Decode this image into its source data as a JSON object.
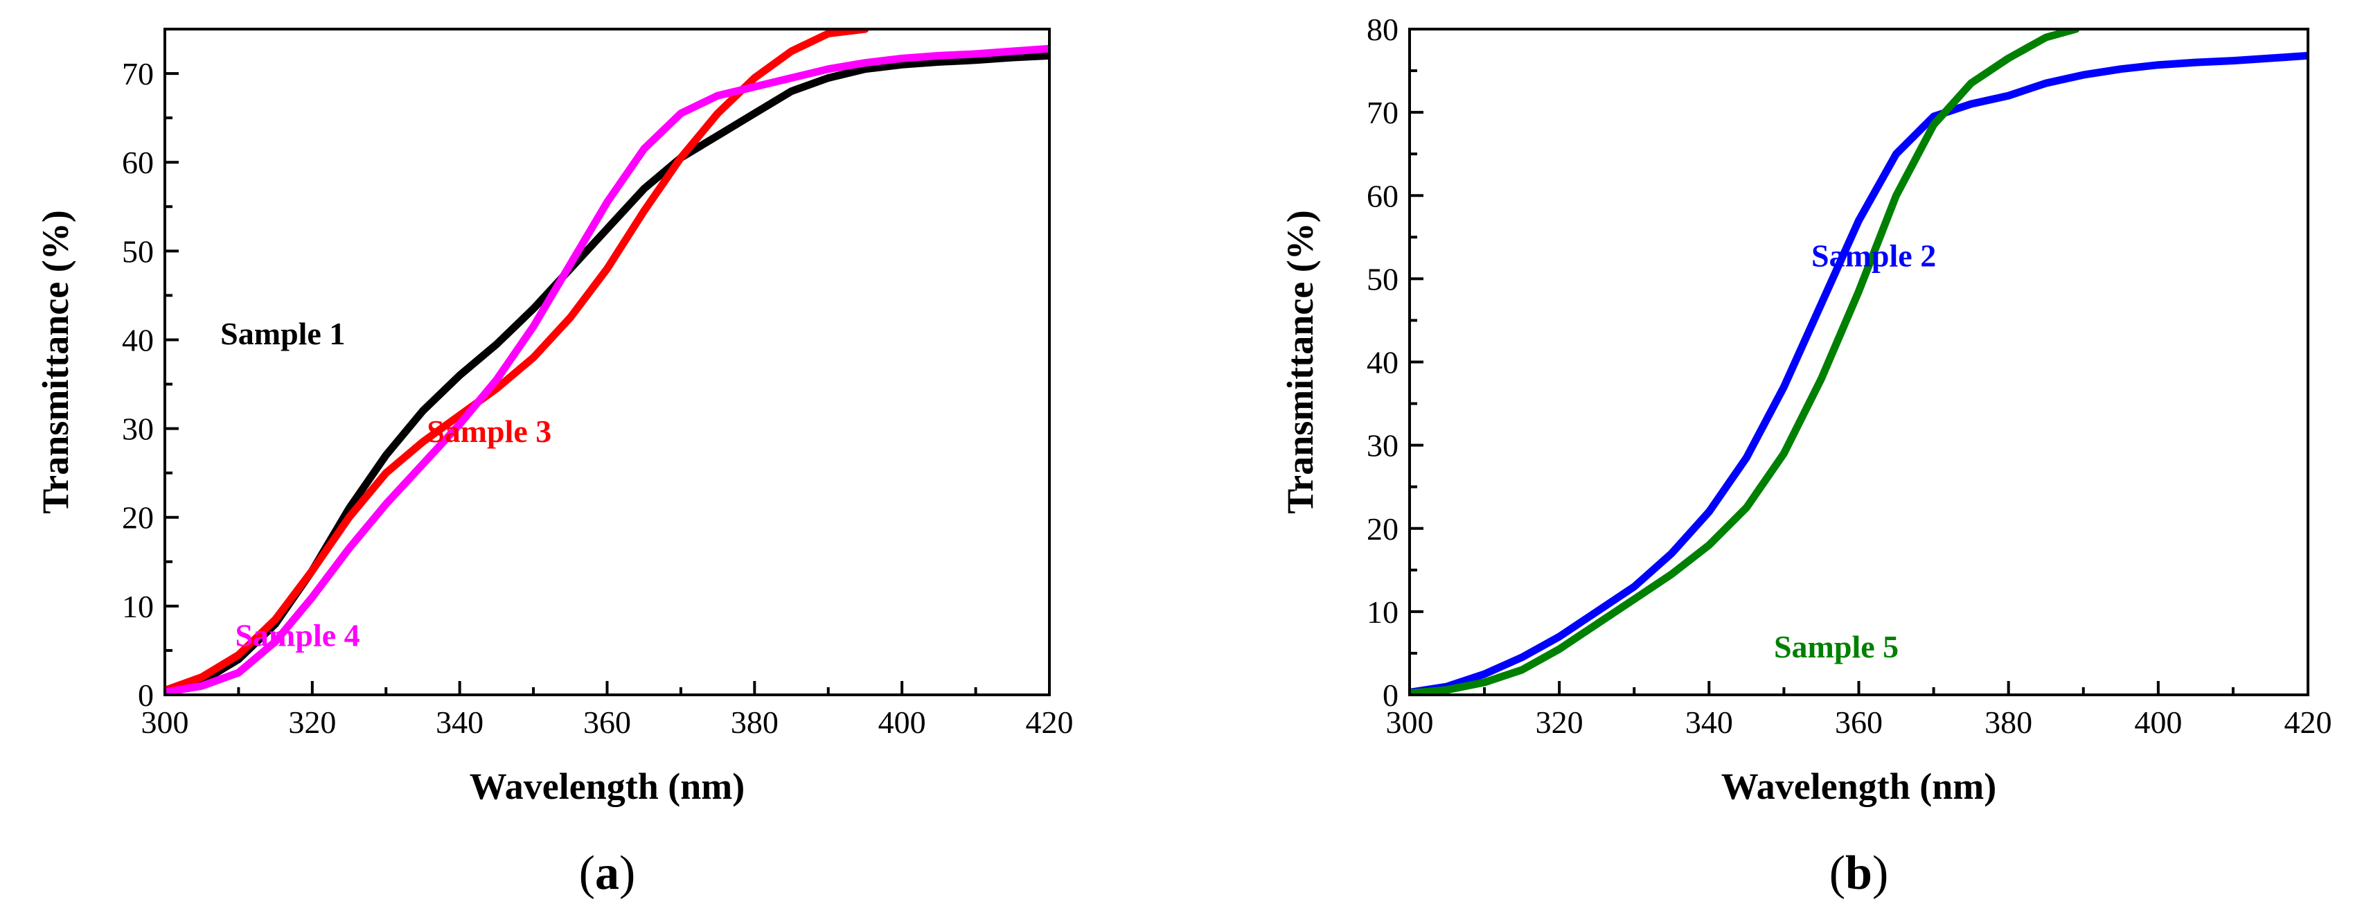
{
  "chart_data": [
    {
      "panel": "(a)",
      "panel_label": {
        "open": "(",
        "letter": "a",
        "close": ")"
      },
      "type": "line",
      "xlabel": "Wavelength (nm)",
      "ylabel": "Transmittance (%)",
      "xlim": [
        300,
        420
      ],
      "ylim": [
        0,
        75
      ],
      "xticks": [
        300,
        320,
        340,
        360,
        380,
        400,
        420
      ],
      "yticks": [
        0,
        10,
        20,
        30,
        40,
        50,
        60,
        70
      ],
      "series": [
        {
          "name": "Sample 1",
          "color": "#000000",
          "label_at": [
            316,
            39.5
          ],
          "x": [
            300,
            305,
            310,
            315,
            320,
            325,
            330,
            335,
            340,
            345,
            350,
            355,
            360,
            365,
            370,
            375,
            380,
            385,
            390,
            395,
            400,
            405,
            410,
            415,
            420
          ],
          "y": [
            0.5,
            1.5,
            4,
            8,
            14,
            21,
            27,
            32,
            36,
            39.5,
            43.5,
            48,
            52.5,
            57,
            60.5,
            63,
            65.5,
            68,
            69.5,
            70.5,
            71,
            71.3,
            71.5,
            71.8,
            72
          ]
        },
        {
          "name": "Sample 3",
          "color": "#ff0000",
          "label_at": [
            344,
            28.5
          ],
          "x": [
            300,
            305,
            310,
            315,
            320,
            325,
            330,
            335,
            340,
            345,
            350,
            355,
            360,
            365,
            370,
            375,
            380,
            385,
            390,
            395
          ],
          "y": [
            0.5,
            2,
            4.5,
            8.5,
            14,
            20,
            25,
            28.5,
            31.5,
            34.5,
            38,
            42.5,
            48,
            54.5,
            60.5,
            65.5,
            69.5,
            72.5,
            74.5,
            75
          ]
        },
        {
          "name": "Sample 4",
          "color": "#ff00ff",
          "label_at": [
            318,
            5.5
          ],
          "x": [
            300,
            305,
            310,
            315,
            320,
            325,
            330,
            335,
            340,
            345,
            350,
            355,
            360,
            365,
            370,
            375,
            380,
            385,
            390,
            395,
            400,
            405,
            410,
            415,
            420
          ],
          "y": [
            0.3,
            1,
            2.5,
            6,
            11,
            16.5,
            21.5,
            26,
            30.5,
            35.5,
            41.5,
            48.5,
            55.5,
            61.5,
            65.5,
            67.5,
            68.5,
            69.5,
            70.5,
            71.2,
            71.7,
            72,
            72.2,
            72.5,
            72.8
          ]
        }
      ]
    },
    {
      "panel": "(b)",
      "panel_label": {
        "open": "(",
        "letter": "b",
        "close": ")"
      },
      "type": "line",
      "xlabel": "Wavelength (nm)",
      "ylabel": "Transmittance (%)",
      "xlim": [
        300,
        420
      ],
      "ylim": [
        0,
        80
      ],
      "xticks": [
        300,
        320,
        340,
        360,
        380,
        400,
        420
      ],
      "yticks": [
        0,
        10,
        20,
        30,
        40,
        50,
        60,
        70,
        80
      ],
      "series": [
        {
          "name": "Sample 2",
          "color": "#0000ff",
          "label_at": [
            362,
            51.5
          ],
          "x": [
            300,
            305,
            310,
            315,
            320,
            325,
            330,
            335,
            340,
            345,
            350,
            355,
            360,
            365,
            370,
            375,
            380,
            385,
            390,
            395,
            400,
            405,
            410,
            415,
            420
          ],
          "y": [
            0.3,
            1,
            2.5,
            4.5,
            7,
            10,
            13,
            17,
            22,
            28.5,
            37,
            47,
            57,
            65,
            69.5,
            71,
            72,
            73.5,
            74.5,
            75.2,
            75.7,
            76,
            76.2,
            76.5,
            76.8
          ]
        },
        {
          "name": "Sample 5",
          "color": "#008000",
          "label_at": [
            357,
            4.5
          ],
          "x": [
            300,
            305,
            310,
            315,
            320,
            325,
            330,
            335,
            340,
            345,
            350,
            355,
            360,
            365,
            370,
            375,
            380,
            385,
            389
          ],
          "y": [
            0.2,
            0.6,
            1.5,
            3,
            5.5,
            8.5,
            11.5,
            14.5,
            18,
            22.5,
            29,
            38,
            48.5,
            60,
            68.5,
            73.5,
            76.5,
            79,
            80
          ]
        }
      ]
    }
  ]
}
